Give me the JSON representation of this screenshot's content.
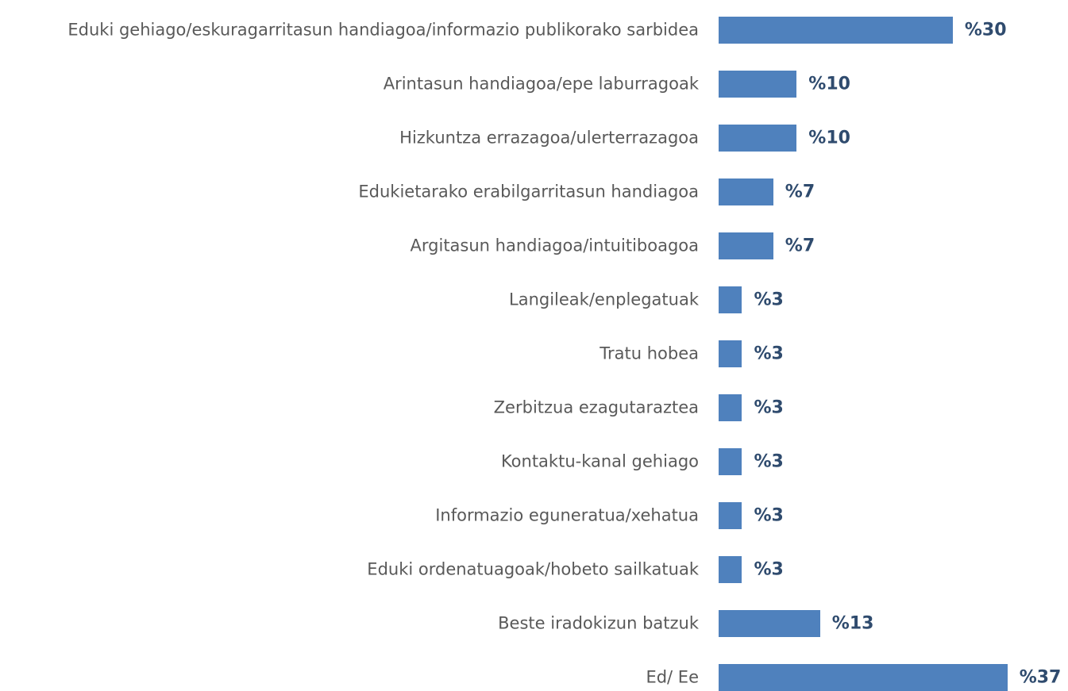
{
  "chart_data": {
    "type": "bar",
    "orientation": "horizontal",
    "color": "#4f81bd",
    "categories": [
      "Eduki gehiago/eskuragarritasun handiagoa/informazio publikorako sarbidea",
      "Arintasun handiagoa/epe laburragoak",
      "Hizkuntza errazagoa/ulerterrazagoa",
      "Edukietarako erabilgarritasun handiagoa",
      "Argitasun handiagoa/intuitiboagoa",
      "Langileak/enplegatuak",
      "Tratu hobea",
      "Zerbitzua ezagutaraztea",
      "Kontaktu-kanal gehiago",
      "Informazio eguneratua/xehatua",
      "Eduki ordenatuagoak/hobeto sailkatuak",
      "Beste iradokizun batzuk",
      "Ed/ Ee"
    ],
    "values": [
      30,
      10,
      10,
      7,
      7,
      3,
      3,
      3,
      3,
      3,
      3,
      13,
      37
    ],
    "value_labels": [
      "%30",
      "%10",
      "%10",
      "%7",
      "%7",
      "%3",
      "%3",
      "%3",
      "%3",
      "%3",
      "%3",
      "%13",
      "%37"
    ]
  }
}
